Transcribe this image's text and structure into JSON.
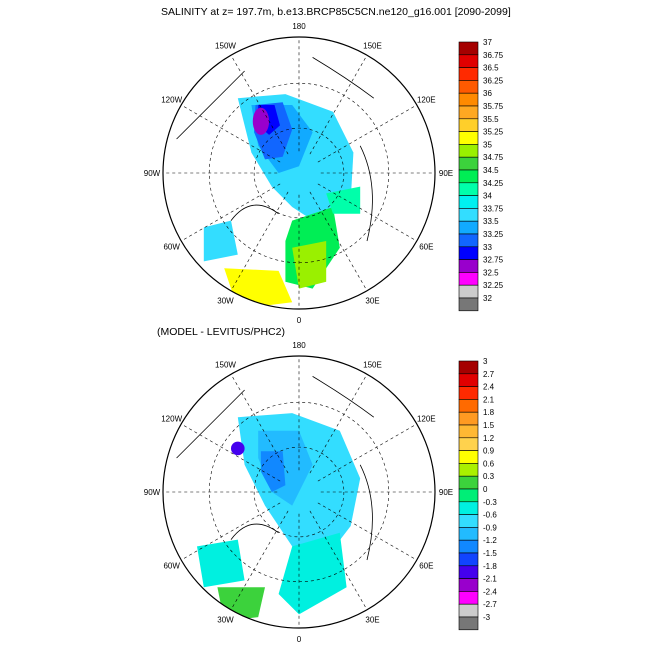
{
  "panels": [
    {
      "title": "SALINITY at z= 197.7m, b.e13.BRCP85C5CN.ne120_g16.001 [2090-2099]",
      "lon_labels": [
        "180",
        "150E",
        "120E",
        "90E",
        "60E",
        "30E",
        "0",
        "30W",
        "60W",
        "90W",
        "120W",
        "150W"
      ],
      "colorbar": {
        "labels": [
          "37",
          "36.75",
          "36.5",
          "36.25",
          "36",
          "35.75",
          "35.5",
          "35.25",
          "35",
          "34.75",
          "34.5",
          "34.25",
          "34",
          "33.75",
          "33.5",
          "33.25",
          "33",
          "32.75",
          "32.5",
          "32.25",
          "32"
        ],
        "colors": [
          "#a50000",
          "#e00000",
          "#ff2a00",
          "#ff5a00",
          "#ff8a00",
          "#ffa822",
          "#ffcf2a",
          "#ffff00",
          "#9af000",
          "#3cd23c",
          "#00ee55",
          "#00ffaa",
          "#00f0f0",
          "#33ddff",
          "#11aaff",
          "#1166ff",
          "#0000ff",
          "#9900cc",
          "#ff00ff",
          "#cccccc",
          "#777777"
        ]
      }
    },
    {
      "title": "(MODEL - LEVITUS/PHC2)",
      "lon_labels": [
        "180",
        "150E",
        "120E",
        "90E",
        "60E",
        "30E",
        "0",
        "30W",
        "60W",
        "90W",
        "120W",
        "150W"
      ],
      "colorbar": {
        "labels": [
          "3",
          "2.7",
          "2.4",
          "2.1",
          "1.8",
          "1.5",
          "1.2",
          "0.9",
          "0.6",
          "0.3",
          "0",
          "-0.3",
          "-0.6",
          "-0.9",
          "-1.2",
          "-1.5",
          "-1.8",
          "-2.1",
          "-2.4",
          "-2.7",
          "-3"
        ],
        "colors": [
          "#a50000",
          "#e00000",
          "#ff2a00",
          "#ff6a00",
          "#ff9a22",
          "#ffb833",
          "#ffd24d",
          "#ffff00",
          "#aaf000",
          "#3cd23c",
          "#00ee77",
          "#00f0e0",
          "#33ddff",
          "#22bbff",
          "#1188ff",
          "#1144ff",
          "#4400ee",
          "#9900cc",
          "#ff00ff",
          "#cccccc",
          "#777777"
        ]
      }
    }
  ]
}
